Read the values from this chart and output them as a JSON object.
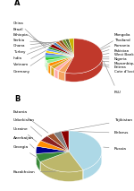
{
  "chart_A": {
    "labels": [
      "FSU",
      "Mongolia",
      "Thailand",
      "Romania",
      "Pakistan",
      "West Bank/Gaza",
      "Nigeria",
      "Mozambique",
      "Eritrea",
      "Cote d'Ivoire",
      "China",
      "Brazil",
      "Ethiopia",
      "Serbia",
      "Ghana",
      "Turkey",
      "India",
      "Vietnam",
      "Germany"
    ],
    "values": [
      55,
      4,
      3,
      3,
      3,
      3,
      3,
      2,
      2,
      2,
      2,
      2,
      3,
      2,
      2,
      2,
      2,
      2,
      3
    ],
    "colors": [
      "#c0392b",
      "#f4a460",
      "#ffaaaa",
      "#daa520",
      "#ff8c00",
      "#90ee90",
      "#32cd32",
      "#20b2aa",
      "#4169e1",
      "#ffd700",
      "#6495ed",
      "#228b22",
      "#8b0000",
      "#4682b4",
      "#d2691e",
      "#8b4513",
      "#6b8e23",
      "#556b2f",
      "#c8b400"
    ],
    "start_angle": 90
  },
  "chart_B": {
    "labels": [
      "Russia",
      "Kazakhstan",
      "Georgia",
      "Azerbaijan",
      "Ukraine",
      "Uzbekistan",
      "Estonia",
      "Tajikistan",
      "Belarus"
    ],
    "values": [
      45,
      25,
      7,
      6,
      5,
      5,
      4,
      4,
      4
    ],
    "colors": [
      "#add8e6",
      "#bdb76b",
      "#3a8a3a",
      "#00008b",
      "#ff8c00",
      "#8b2020",
      "#a0522d",
      "#808080",
      "#8b0000"
    ],
    "start_angle": 90
  }
}
